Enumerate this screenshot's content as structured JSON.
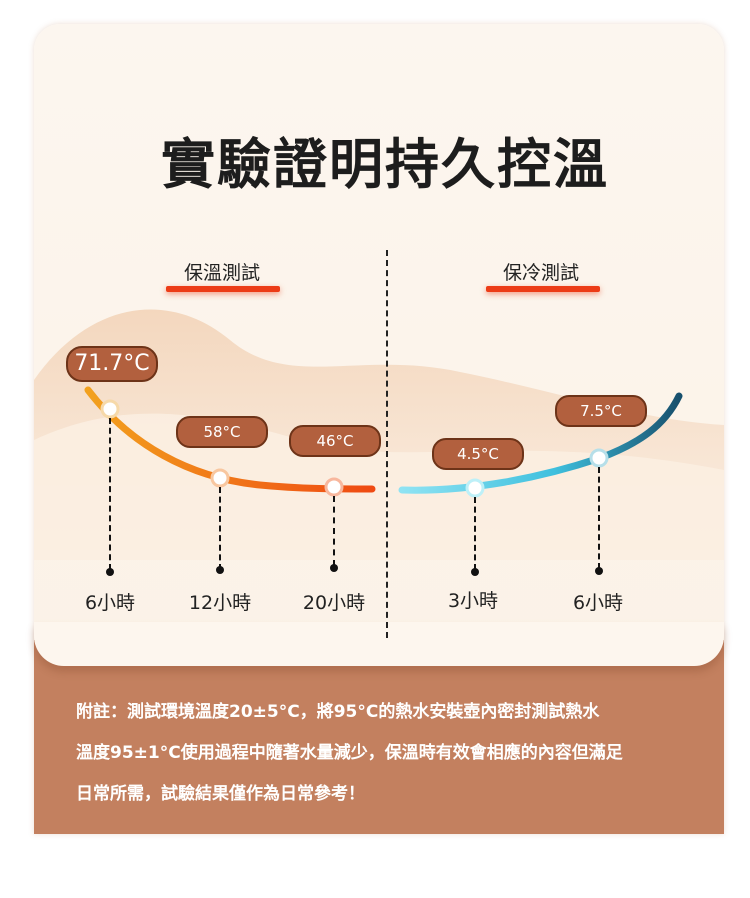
{
  "title": "實驗證明持久控溫",
  "sections": {
    "warm": {
      "label": "保溫測試"
    },
    "cold": {
      "label": "保冷測試"
    }
  },
  "warm_points": [
    {
      "time": "6小時",
      "temp": "71.7°C"
    },
    {
      "time": "12小時",
      "temp": "58°C"
    },
    {
      "time": "20小時",
      "temp": "46°C"
    }
  ],
  "cold_points": [
    {
      "time": "3小時",
      "temp": "4.5°C"
    },
    {
      "time": "6小時",
      "temp": "7.5°C"
    }
  ],
  "colors": {
    "warm_start": "#f2a11e",
    "warm_end": "#ef4a12",
    "cold_start": "#8fe3f3",
    "cold_end": "#17506d",
    "footer": "#c3805f"
  },
  "footnote": [
    "附註：測試環境溫度20±5°C，將95°C的熱水安裝壺內密封測試熱水",
    "溫度95±1°C使用過程中隨著水量減少，保溫時有效會相應的內容但滿足",
    "日常所需，試驗結果僅作為日常參考！"
  ]
}
